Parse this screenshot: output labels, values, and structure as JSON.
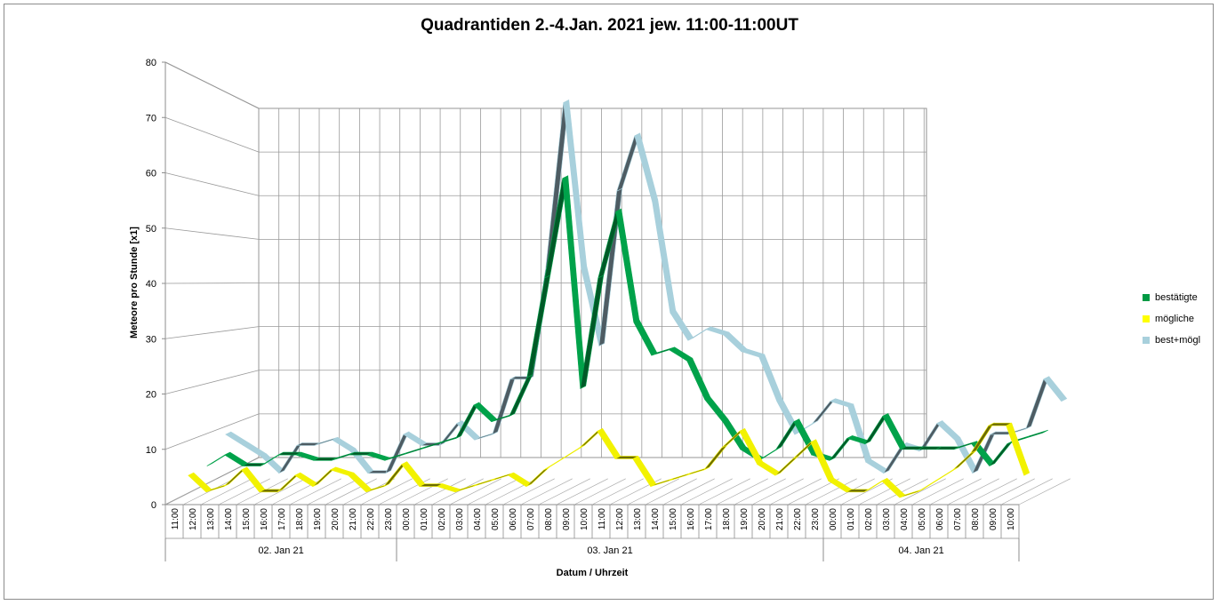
{
  "chart_data": {
    "type": "line",
    "title": "Quadrantiden 2.-4.Jan. 2021 jew. 11:00-11:00UT",
    "ylabel": "Meteore pro Stunde [x1]",
    "xlabel": "Datum / Uhrzeit",
    "ylim": [
      0,
      80
    ],
    "yticks": [
      "0",
      "10",
      "20",
      "30",
      "40",
      "50",
      "60",
      "70",
      "80"
    ],
    "grid": true,
    "legend_position": "right",
    "categories": [
      "11:00",
      "12:00",
      "13:00",
      "14:00",
      "15:00",
      "16:00",
      "17:00",
      "18:00",
      "19:00",
      "20:00",
      "21:00",
      "22:00",
      "23:00",
      "00:00",
      "01:00",
      "02:00",
      "03:00",
      "04:00",
      "05:00",
      "06:00",
      "07:00",
      "08:00",
      "09:00",
      "10:00",
      "11:00",
      "12:00",
      "13:00",
      "14:00",
      "15:00",
      "16:00",
      "17:00",
      "18:00",
      "19:00",
      "20:00",
      "21:00",
      "22:00",
      "23:00",
      "00:00",
      "01:00",
      "02:00",
      "03:00",
      "04:00",
      "05:00",
      "06:00",
      "07:00",
      "08:00",
      "09:00",
      "10:00"
    ],
    "groups": [
      {
        "label": "02. Jan 21",
        "count": 13
      },
      {
        "label": "03. Jan 21",
        "count": 24
      },
      {
        "label": "04. Jan 21",
        "count": 11
      }
    ],
    "series": [
      {
        "name": "best+mögl",
        "color": "#a8d0dc",
        "values": [
          8,
          6,
          4,
          1,
          6,
          6,
          7,
          5,
          1,
          1,
          8,
          6,
          6,
          10,
          7,
          8,
          18,
          18,
          38,
          68,
          38,
          24,
          52,
          62,
          50,
          30,
          25,
          27,
          26,
          23,
          22,
          14,
          8,
          10,
          14,
          13,
          3,
          1,
          6,
          5,
          10,
          7,
          1,
          8,
          8,
          9,
          18,
          14
        ]
      },
      {
        "name": "bestätigte",
        "color": "#009a44",
        "values": [
          4,
          6,
          4,
          4,
          6,
          6,
          5,
          5,
          6,
          6,
          5,
          6,
          7,
          8,
          9,
          15,
          12,
          13,
          20,
          38,
          56,
          18,
          38,
          50,
          30,
          24,
          25,
          23,
          16,
          12,
          7,
          5,
          7,
          12,
          6,
          5,
          9,
          8,
          13,
          7,
          7,
          7,
          7,
          8,
          4,
          8,
          9,
          10
        ]
      },
      {
        "name": "mögliche",
        "color": "#ffff00",
        "values": [
          4,
          1,
          2,
          5,
          1,
          1,
          4,
          2,
          5,
          4,
          1,
          2,
          6,
          2,
          2,
          1,
          2,
          3,
          4,
          2,
          5,
          7,
          9,
          12,
          7,
          7,
          2,
          3,
          4,
          5,
          9,
          12,
          6,
          4,
          7,
          10,
          3,
          1,
          1,
          3,
          0,
          1,
          3,
          5,
          8,
          13,
          13,
          4
        ]
      }
    ]
  }
}
